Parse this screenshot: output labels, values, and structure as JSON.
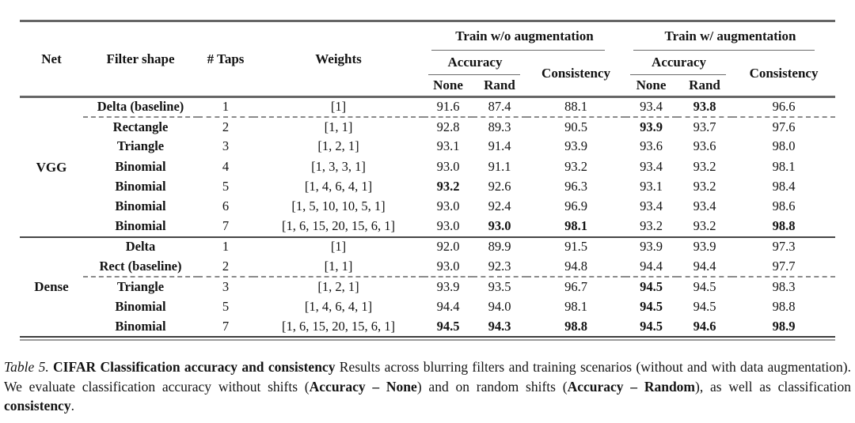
{
  "colors": {
    "background": "#ffffff",
    "text": "#121212",
    "rule_thick": "#666666",
    "rule_section": "#454545",
    "rule_dashed": "#8a8a8a"
  },
  "table": {
    "headers": {
      "net": "Net",
      "filter_shape": "Filter shape",
      "taps": "# Taps",
      "weights": "Weights",
      "group_wo": "Train w/o augmentation",
      "group_w": "Train w/ augmentation",
      "accuracy": "Accuracy",
      "consistency": "Consistency",
      "none": "None",
      "rand": "Rand"
    },
    "sections": [
      {
        "id": "0",
        "net": "VGG",
        "rows": [
          {
            "filter": "Delta (baseline)",
            "taps": "1",
            "weights": "[1]",
            "wo": [
              "91.6",
              "87.4",
              "88.1"
            ],
            "wo_bold": [
              false,
              false,
              false
            ],
            "w": [
              "93.4",
              "93.8",
              "96.6"
            ],
            "w_bold": [
              false,
              true,
              false
            ],
            "dashed_after": true
          },
          {
            "filter": "Rectangle",
            "taps": "2",
            "weights": "[1, 1]",
            "wo": [
              "92.8",
              "89.3",
              "90.5"
            ],
            "wo_bold": [
              false,
              false,
              false
            ],
            "w": [
              "93.9",
              "93.7",
              "97.6"
            ],
            "w_bold": [
              true,
              false,
              false
            ],
            "dashed_after": false
          },
          {
            "filter": "Triangle",
            "taps": "3",
            "weights": "[1, 2, 1]",
            "wo": [
              "93.1",
              "91.4",
              "93.9"
            ],
            "wo_bold": [
              false,
              false,
              false
            ],
            "w": [
              "93.6",
              "93.6",
              "98.0"
            ],
            "w_bold": [
              false,
              false,
              false
            ],
            "dashed_after": false
          },
          {
            "filter": "Binomial",
            "taps": "4",
            "weights": "[1, 3, 3, 1]",
            "wo": [
              "93.0",
              "91.1",
              "93.2"
            ],
            "wo_bold": [
              false,
              false,
              false
            ],
            "w": [
              "93.4",
              "93.2",
              "98.1"
            ],
            "w_bold": [
              false,
              false,
              false
            ],
            "dashed_after": false
          },
          {
            "filter": "Binomial",
            "taps": "5",
            "weights": "[1, 4, 6, 4, 1]",
            "wo": [
              "93.2",
              "92.6",
              "96.3"
            ],
            "wo_bold": [
              true,
              false,
              false
            ],
            "w": [
              "93.1",
              "93.2",
              "98.4"
            ],
            "w_bold": [
              false,
              false,
              false
            ],
            "dashed_after": false
          },
          {
            "filter": "Binomial",
            "taps": "6",
            "weights": "[1, 5, 10, 10, 5, 1]",
            "wo": [
              "93.0",
              "92.4",
              "96.9"
            ],
            "wo_bold": [
              false,
              false,
              false
            ],
            "w": [
              "93.4",
              "93.4",
              "98.6"
            ],
            "w_bold": [
              false,
              false,
              false
            ],
            "dashed_after": false
          },
          {
            "filter": "Binomial",
            "taps": "7",
            "weights": "[1, 6, 15, 20, 15, 6, 1]",
            "wo": [
              "93.0",
              "93.0",
              "98.1"
            ],
            "wo_bold": [
              false,
              true,
              true
            ],
            "w": [
              "93.2",
              "93.2",
              "98.8"
            ],
            "w_bold": [
              false,
              false,
              true
            ],
            "dashed_after": false
          }
        ]
      },
      {
        "id": "1",
        "net": "Dense",
        "rows": [
          {
            "filter": "Delta",
            "taps": "1",
            "weights": "[1]",
            "wo": [
              "92.0",
              "89.9",
              "91.5"
            ],
            "wo_bold": [
              false,
              false,
              false
            ],
            "w": [
              "93.9",
              "93.9",
              "97.3"
            ],
            "w_bold": [
              false,
              false,
              false
            ],
            "dashed_after": false
          },
          {
            "filter": "Rect (baseline)",
            "taps": "2",
            "weights": "[1, 1]",
            "wo": [
              "93.0",
              "92.3",
              "94.8"
            ],
            "wo_bold": [
              false,
              false,
              false
            ],
            "w": [
              "94.4",
              "94.4",
              "97.7"
            ],
            "w_bold": [
              false,
              false,
              false
            ],
            "dashed_after": true
          },
          {
            "filter": "Triangle",
            "taps": "3",
            "weights": "[1, 2, 1]",
            "wo": [
              "93.9",
              "93.5",
              "96.7"
            ],
            "wo_bold": [
              false,
              false,
              false
            ],
            "w": [
              "94.5",
              "94.5",
              "98.3"
            ],
            "w_bold": [
              true,
              false,
              false
            ],
            "dashed_after": false
          },
          {
            "filter": "Binomial",
            "taps": "5",
            "weights": "[1, 4, 6, 4, 1]",
            "wo": [
              "94.4",
              "94.0",
              "98.1"
            ],
            "wo_bold": [
              false,
              false,
              false
            ],
            "w": [
              "94.5",
              "94.5",
              "98.8"
            ],
            "w_bold": [
              true,
              false,
              false
            ],
            "dashed_after": false
          },
          {
            "filter": "Binomial",
            "taps": "7",
            "weights": "[1, 6, 15, 20, 15, 6, 1]",
            "wo": [
              "94.5",
              "94.3",
              "98.8"
            ],
            "wo_bold": [
              true,
              true,
              true
            ],
            "w": [
              "94.5",
              "94.6",
              "98.9"
            ],
            "w_bold": [
              true,
              true,
              true
            ],
            "dashed_after": false
          }
        ]
      }
    ]
  },
  "caption": {
    "label": "Table 5. ",
    "title": "CIFAR Classification accuracy and consistency",
    "t1": " Results across blurring filters and training scenarios (without and with data augmentation). We evaluate classification accuracy without shifts (",
    "b1": "Accuracy – None",
    "t2": ") and on random shifts (",
    "b2": "Accuracy – Random",
    "t3": "), as well as classification ",
    "b3": "consistency",
    "t4": "."
  }
}
